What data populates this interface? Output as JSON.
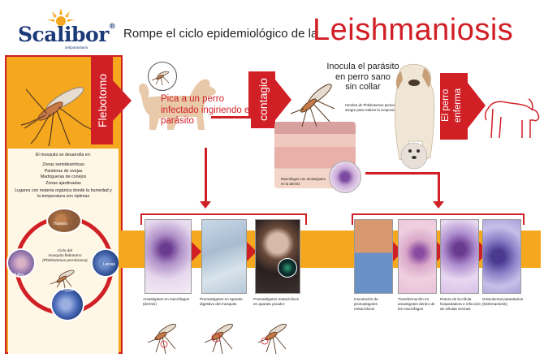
{
  "header": {
    "brand": "Scalibor",
    "brand_mark": "®",
    "brand_sub": "antiparasitario",
    "prefix": "Rompe el  ciclo epidemiológico  de la",
    "title": "Leishmaniosis"
  },
  "arrows": {
    "flebotomo": "Flebotomo",
    "contagio": "contagio",
    "enferma_line1": "El perro",
    "enferma_line2": "enferma"
  },
  "development": {
    "title": "El mosquito se desarrolla en:",
    "places": [
      "Zonas semidesérticas",
      "Parideras de ovejas",
      "Madrigueras de conejos",
      "Zonas ajardinadas"
    ],
    "note": "Lugares con materia orgánica donde la humedad y la temperatura son óptimas"
  },
  "cycle": {
    "center_line1": "Ciclo del",
    "center_line2": "mosquito flebotomo",
    "center_line3": "(Phlebotomus perniciosus)",
    "stages": [
      "Huevos",
      "Larvas",
      "Pupas",
      "Adultos"
    ]
  },
  "steps": {
    "pica": "Pica a un perro infectado ingiriendo el parásito",
    "inocula_line1": "Inocula el parásito",
    "inocula_line2": "en perro sano",
    "inocula_line3": "sin collar",
    "hembra": "Hembra de Phlebotomus perniciosus ingiriendo sangre para realizar la ovoposición",
    "macrofagos_skin": "Macrófagos con amastigotes en la dermis"
  },
  "mosquito_panels": [
    {
      "caption": "Amastigotes en macrófagos (dermis)"
    },
    {
      "caption": "Promastigotes en aparato digestivo del mosquito"
    },
    {
      "caption": "Promastigotes metacíclicos en aparato picador"
    }
  ],
  "dog_panels": [
    {
      "caption": "Inoculación de promastigotes metacíclicos"
    },
    {
      "caption": "Transformación en amastigotes dentro de los macrófagos"
    },
    {
      "caption": "Rotura de la célula hospedadora e infección de células vecinas"
    },
    {
      "caption": "Granulomas parasitarios (leishmaniosis)"
    }
  ],
  "colors": {
    "red": "#d11f26",
    "orange": "#f5a81e",
    "navy": "#1c3a78",
    "tan": "#e8c9a9"
  },
  "icons": [
    "sun-icon",
    "mosquito-icon",
    "dog-silhouette-icon",
    "dog-outline-icon"
  ]
}
